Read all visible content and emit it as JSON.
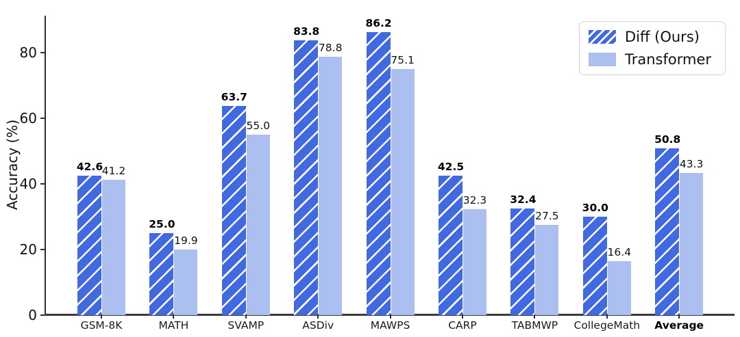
{
  "chart_data": {
    "type": "bar",
    "title": "",
    "xlabel": "",
    "ylabel": "Accuracy (%)",
    "categories": [
      "GSM-8K",
      "MATH",
      "SVAMP",
      "ASDiv",
      "MAWPS",
      "CARP",
      "TABMWP",
      "CollegeMath",
      "Average"
    ],
    "series": [
      {
        "name": "Diff (Ours)",
        "values": [
          42.6,
          25.0,
          63.7,
          83.8,
          86.2,
          42.5,
          32.4,
          30.0,
          50.8
        ],
        "color": "#4169e1",
        "hatch": "/",
        "hatch_color": "#ffffff",
        "value_label_weight": "bold"
      },
      {
        "name": "Transformer",
        "values": [
          41.2,
          19.9,
          55.0,
          78.8,
          75.1,
          32.3,
          27.5,
          16.4,
          43.3
        ],
        "color": "#abc0f1",
        "hatch": "",
        "value_label_weight": "normal"
      }
    ],
    "yticks": [
      0,
      20,
      40,
      60,
      80
    ],
    "ylim": [
      0,
      91.25
    ],
    "grid": false,
    "legend_position": "upper right",
    "bold_categories": [
      "Average"
    ],
    "value_label_format": "one_decimal"
  },
  "colors": {
    "axis": "#2e2e2e",
    "text": "#111111",
    "diff_bar": "#4169e1",
    "transformer_bar": "#abc0f1",
    "hatch": "#ffffff",
    "legend_border": "#d5d5d5",
    "background": "#ffffff"
  }
}
